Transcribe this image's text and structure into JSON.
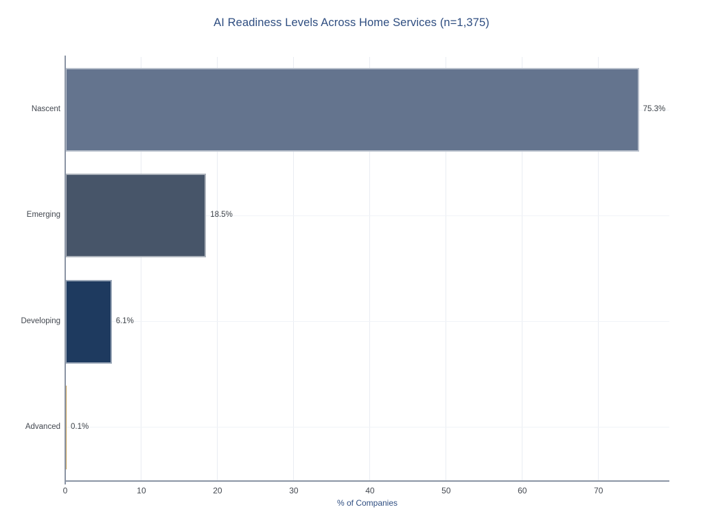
{
  "chart_data": {
    "type": "bar",
    "orientation": "horizontal",
    "title": "AI Readiness Levels Across Home Services (n=1,375)",
    "categories": [
      "Nascent",
      "Emerging",
      "Developing",
      "Advanced"
    ],
    "values": [
      75.3,
      18.5,
      6.1,
      0.1
    ],
    "value_labels": [
      "75.3%",
      "18.5%",
      "6.1%",
      "0.1%"
    ],
    "bar_colors": [
      "#64748E",
      "#475569",
      "#1E3A5F",
      "#C9A35C"
    ],
    "xlabel": "% of Companies",
    "ylabel": "",
    "xlim": [
      0,
      79.3
    ],
    "xticks": [
      0,
      10,
      20,
      30,
      40,
      50,
      60,
      70
    ],
    "grid": true,
    "legend_position": "none"
  },
  "colors": {
    "title": "#2E4D80",
    "axis_label": "#2E4D80",
    "tick_label": "#42474F",
    "bar_label": "#3D4248",
    "axis_line": "#8A94A4",
    "gridline_vertical": "#E9ECF2",
    "gridline_horizontal": "#F0F3F7",
    "bar_edge": "rgba(255,255,255,0.55)",
    "background": "#FFFFFF"
  }
}
